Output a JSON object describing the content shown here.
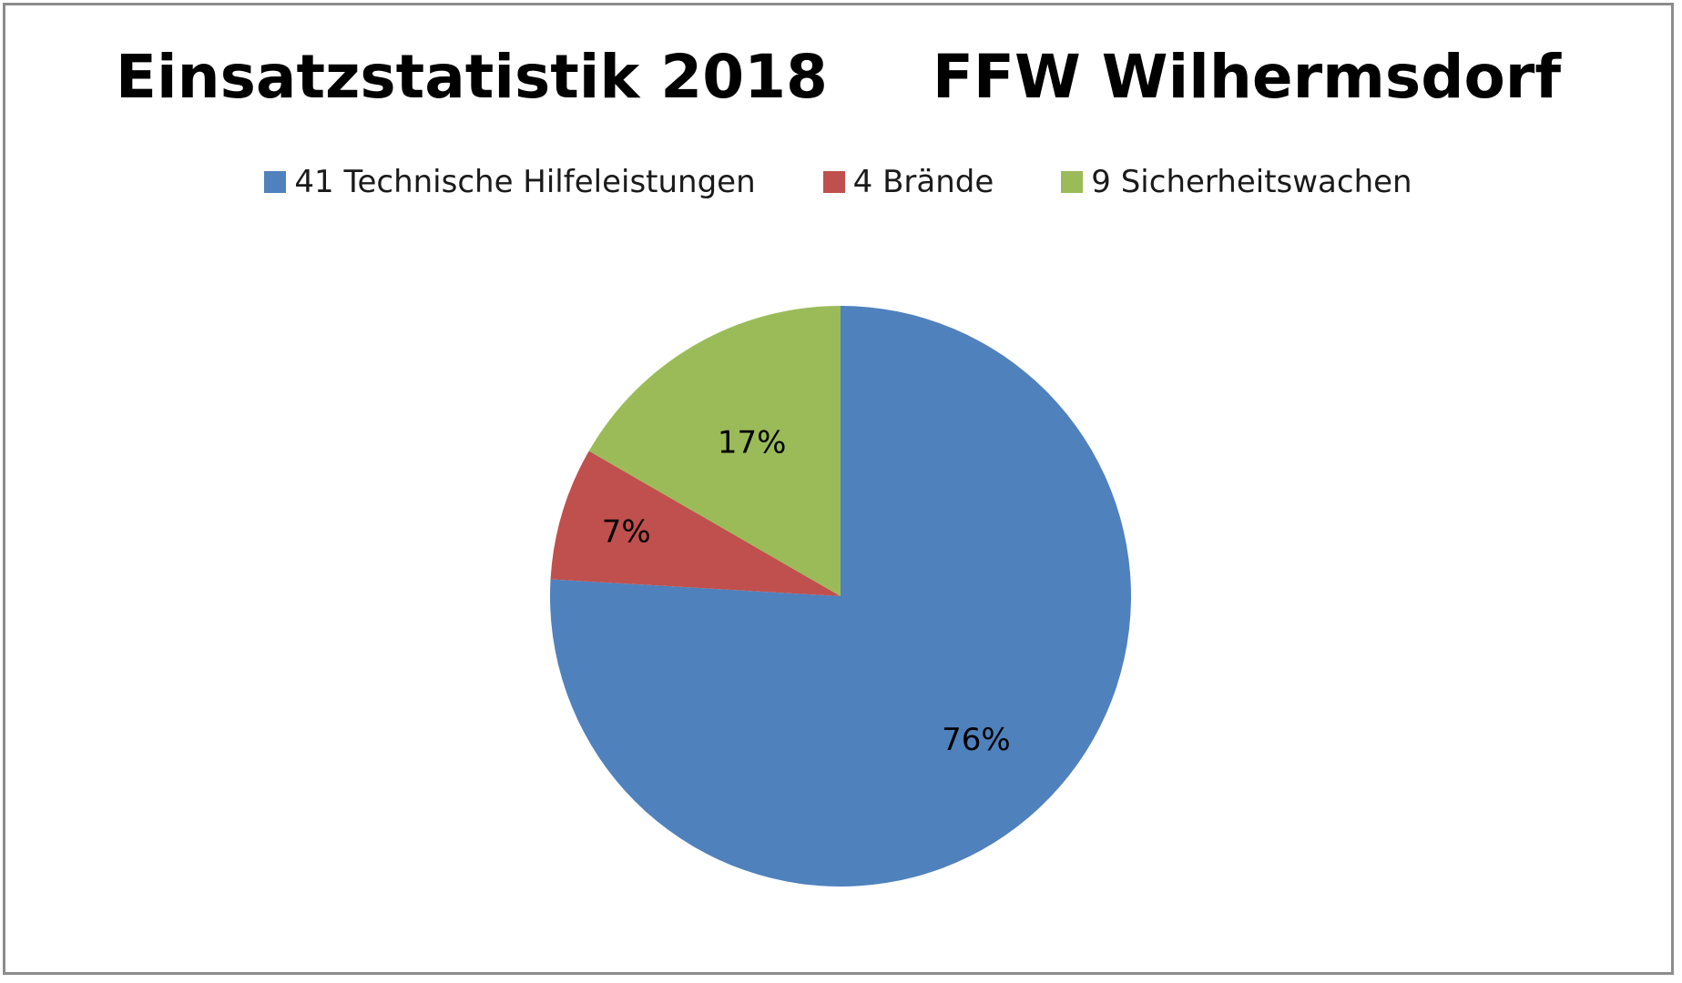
{
  "chart_data": {
    "type": "pie",
    "title": "Einsatzstatistik 2018     FFW Wilhermsdorf",
    "legend_position": "top",
    "slices": [
      {
        "legend": "41 Technische Hilfeleistungen",
        "value": 41,
        "percent_label": "76%",
        "color": "#4f81bd"
      },
      {
        "legend": "4 Brände",
        "value": 4,
        "percent_label": "7%",
        "color": "#c0504d"
      },
      {
        "legend": "9 Sicherheitswachen",
        "value": 9,
        "percent_label": "17%",
        "color": "#9bbb59"
      }
    ]
  }
}
